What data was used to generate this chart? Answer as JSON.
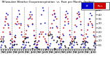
{
  "title": "Milwaukee Weather Evapotranspiration  vs  Rain per Month  (Inches)",
  "legend_labels": [
    "ET",
    "Rain"
  ],
  "legend_colors": [
    "#0000cc",
    "#cc0000"
  ],
  "background_color": "#ffffff",
  "years": [
    1999,
    2000,
    2001,
    2002,
    2003,
    2004,
    2005,
    2006
  ],
  "months_per_year": 12,
  "et": [
    0.3,
    0.5,
    0.8,
    1.5,
    2.8,
    3.5,
    4.2,
    4.0,
    2.8,
    1.8,
    0.7,
    0.3,
    0.3,
    0.5,
    0.9,
    1.6,
    2.9,
    3.8,
    4.5,
    4.1,
    3.0,
    1.7,
    0.6,
    0.2,
    0.3,
    0.5,
    0.8,
    1.4,
    2.7,
    3.6,
    4.3,
    4.0,
    2.9,
    1.6,
    0.7,
    0.3,
    0.3,
    0.6,
    1.0,
    1.8,
    3.0,
    4.0,
    4.8,
    4.5,
    3.1,
    1.8,
    0.8,
    0.3,
    0.2,
    0.4,
    0.7,
    1.3,
    2.5,
    3.4,
    4.1,
    3.8,
    2.7,
    1.5,
    0.6,
    0.2,
    0.3,
    0.5,
    0.9,
    1.6,
    2.8,
    3.7,
    4.4,
    4.2,
    3.0,
    1.7,
    0.7,
    0.3,
    0.3,
    0.5,
    0.8,
    1.5,
    2.7,
    3.6,
    4.3,
    4.1,
    2.9,
    1.7,
    0.7,
    0.3,
    0.3,
    0.5,
    0.9,
    1.5,
    2.8,
    3.5,
    4.2,
    3.9,
    2.8,
    1.6,
    0.7,
    0.3
  ],
  "rain": [
    1.2,
    1.5,
    2.0,
    2.5,
    3.2,
    3.8,
    3.5,
    3.0,
    2.5,
    2.0,
    1.8,
    1.2,
    0.8,
    1.0,
    1.5,
    3.0,
    3.5,
    3.2,
    3.0,
    2.5,
    2.8,
    2.0,
    1.5,
    1.0,
    1.5,
    1.8,
    2.2,
    2.8,
    3.5,
    4.0,
    3.8,
    3.5,
    3.0,
    2.2,
    1.6,
    1.3,
    0.5,
    0.8,
    1.0,
    1.5,
    2.0,
    1.8,
    2.0,
    1.5,
    1.2,
    1.0,
    0.8,
    0.6,
    1.8,
    2.0,
    2.5,
    3.0,
    4.0,
    4.5,
    4.2,
    3.8,
    3.5,
    2.5,
    2.0,
    1.5,
    1.0,
    1.2,
    1.8,
    2.5,
    3.2,
    4.0,
    3.8,
    3.5,
    3.2,
    2.2,
    1.5,
    1.0,
    1.2,
    1.5,
    2.0,
    2.8,
    3.5,
    4.2,
    4.0,
    3.8,
    3.2,
    2.3,
    1.6,
    1.2,
    1.0,
    1.3,
    1.8,
    2.3,
    3.0,
    3.5,
    3.2,
    3.0,
    2.6,
    2.0,
    1.5,
    1.0
  ],
  "ylim": [
    0.0,
    5.0
  ],
  "ytick_vals": [
    0.5,
    1.0,
    1.5,
    2.0,
    2.5,
    3.0,
    3.5,
    4.0,
    4.5
  ],
  "ytick_labels": [
    "0.5",
    "1.0",
    "1.5",
    "2.0",
    "2.5",
    "3.0",
    "3.5",
    "4.0",
    "4.5"
  ],
  "dot_size": 1.8,
  "month_abbr": [
    "J",
    "F",
    "M",
    "A",
    "M",
    "J",
    "J",
    "A",
    "S",
    "O",
    "N",
    "D"
  ]
}
